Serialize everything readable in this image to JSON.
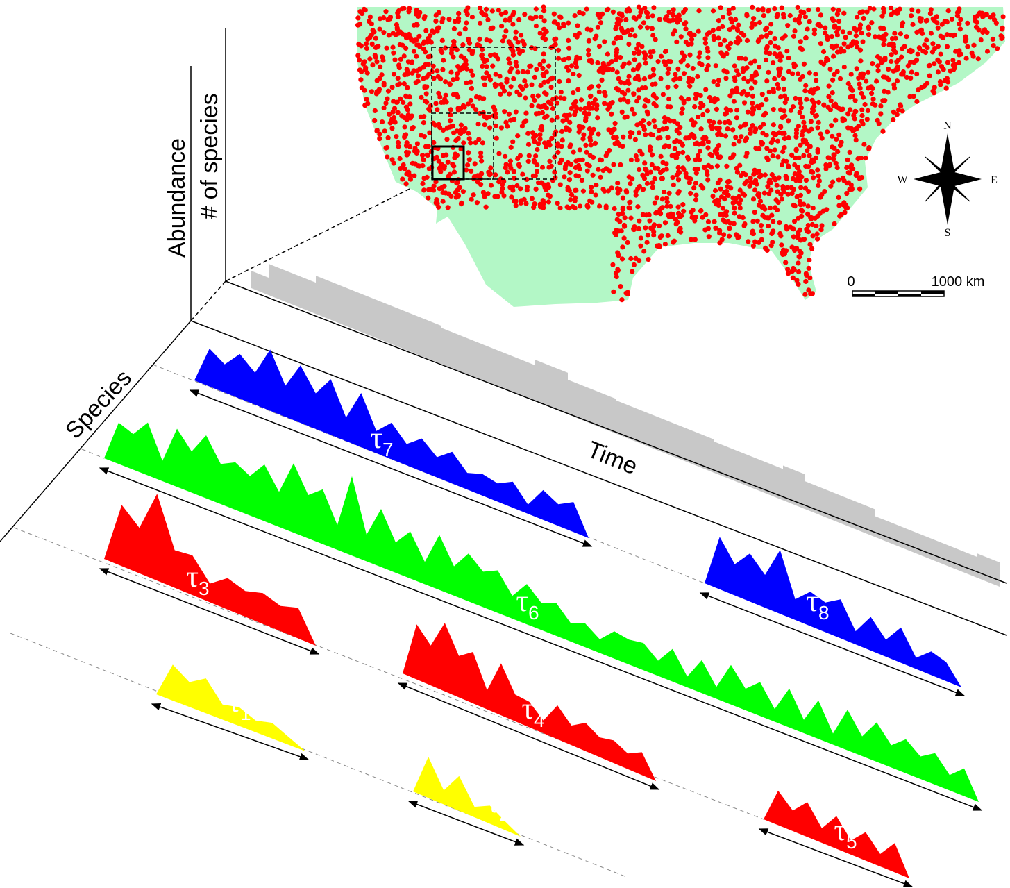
{
  "axes": {
    "abundance": "Abundance",
    "species_count": "# of species",
    "species": "Species",
    "time": "Time"
  },
  "segments": [
    {
      "symbol": "τ",
      "index": "1",
      "color": "#ffff00"
    },
    {
      "symbol": "τ",
      "index": "2",
      "color": "#ffff00"
    },
    {
      "symbol": "τ",
      "index": "3",
      "color": "#ff0000"
    },
    {
      "symbol": "τ",
      "index": "4",
      "color": "#ff0000"
    },
    {
      "symbol": "τ",
      "index": "5",
      "color": "#ff0000"
    },
    {
      "symbol": "τ",
      "index": "6",
      "color": "#00ff00"
    },
    {
      "symbol": "τ",
      "index": "7",
      "color": "#0000ff"
    },
    {
      "symbol": "τ",
      "index": "8",
      "color": "#0000ff"
    }
  ],
  "compass": {
    "north": "N",
    "south": "S",
    "east": "E",
    "west": "W"
  },
  "scale_bar": {
    "start": "0",
    "end": "1000 km"
  }
}
